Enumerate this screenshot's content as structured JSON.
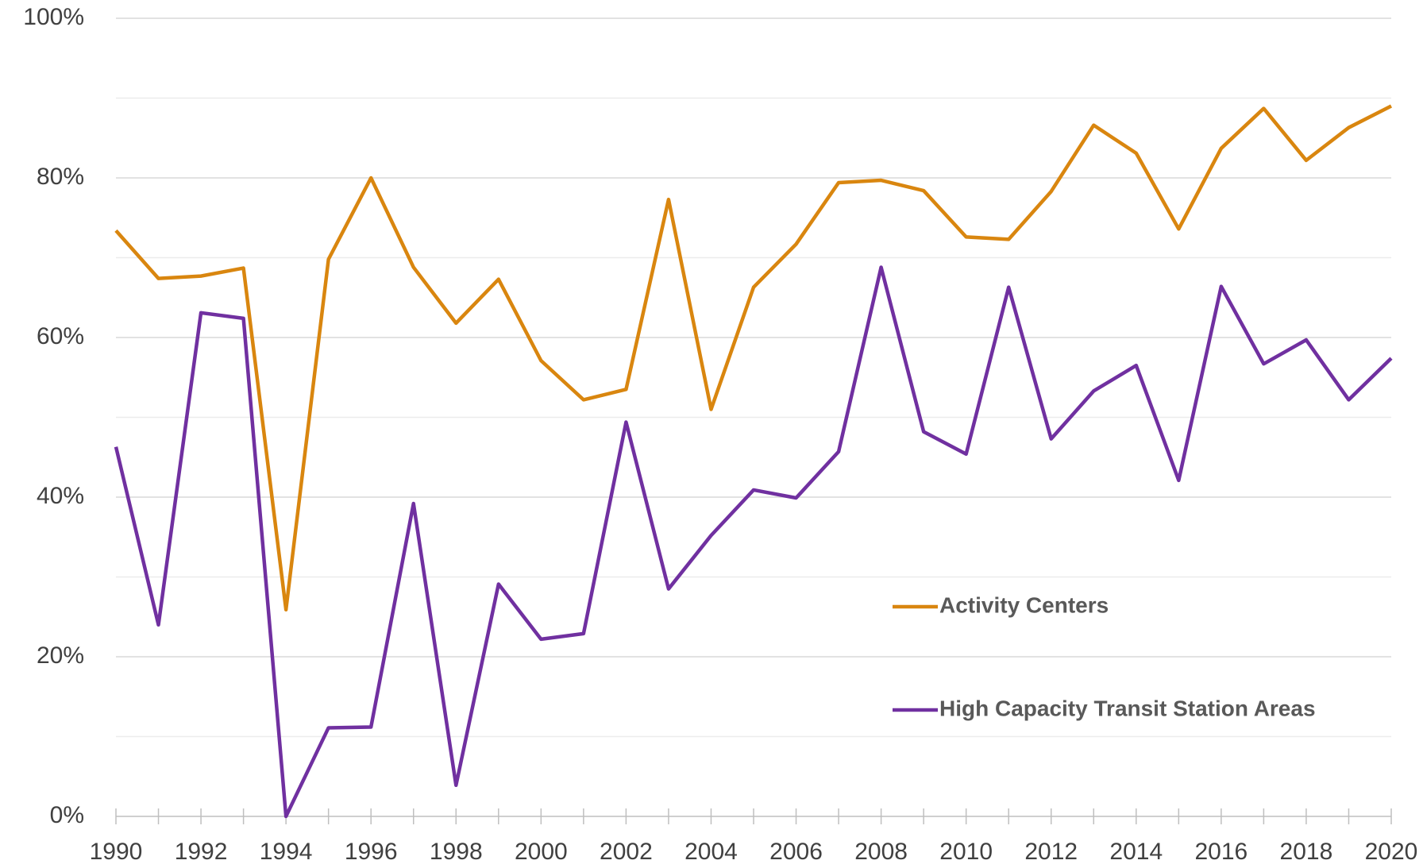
{
  "chart_data": {
    "type": "line",
    "x": [
      1990,
      1991,
      1992,
      1993,
      1994,
      1995,
      1996,
      1997,
      1998,
      1999,
      2000,
      2001,
      2002,
      2003,
      2004,
      2005,
      2006,
      2007,
      2008,
      2009,
      2010,
      2011,
      2012,
      2013,
      2014,
      2015,
      2016,
      2017,
      2018,
      2019,
      2020
    ],
    "xlim": [
      1990,
      2020
    ],
    "xticks": [
      1990,
      1992,
      1994,
      1996,
      1998,
      2000,
      2002,
      2004,
      2006,
      2008,
      2010,
      2012,
      2014,
      2016,
      2018,
      2020
    ],
    "ylim": [
      0,
      100
    ],
    "yticks": [
      {
        "value": 0,
        "label": "0%"
      },
      {
        "value": 20,
        "label": "20%"
      },
      {
        "value": 40,
        "label": "40%"
      },
      {
        "value": 60,
        "label": "60%"
      },
      {
        "value": 80,
        "label": "80%"
      },
      {
        "value": 100,
        "label": "100%"
      }
    ],
    "y_minor_ticks": [
      10,
      30,
      50,
      70,
      90
    ],
    "grid": true,
    "legend": "lower right",
    "series": [
      {
        "name": "Activity Centers",
        "color": "#d9860f",
        "values": [
          73.4,
          67.4,
          67.7,
          68.7,
          25.9,
          69.8,
          80.0,
          68.8,
          61.8,
          67.3,
          57.1,
          52.2,
          53.5,
          77.3,
          51.0,
          66.3,
          71.7,
          79.4,
          79.7,
          78.4,
          72.6,
          72.3,
          78.3,
          86.6,
          83.1,
          73.6,
          83.7,
          88.7,
          82.2,
          86.3,
          89.0
        ]
      },
      {
        "name": "High Capacity Transit Station Areas",
        "color": "#7030a0",
        "values": [
          46.3,
          24.0,
          63.1,
          62.4,
          0,
          11.1,
          11.2,
          39.2,
          3.9,
          29.1,
          22.2,
          22.9,
          49.4,
          28.5,
          35.2,
          40.9,
          39.9,
          45.7,
          68.8,
          48.2,
          45.4,
          66.3,
          47.3,
          53.3,
          56.5,
          42.1,
          66.4,
          56.7,
          59.7,
          52.2,
          57.4
        ]
      }
    ]
  }
}
